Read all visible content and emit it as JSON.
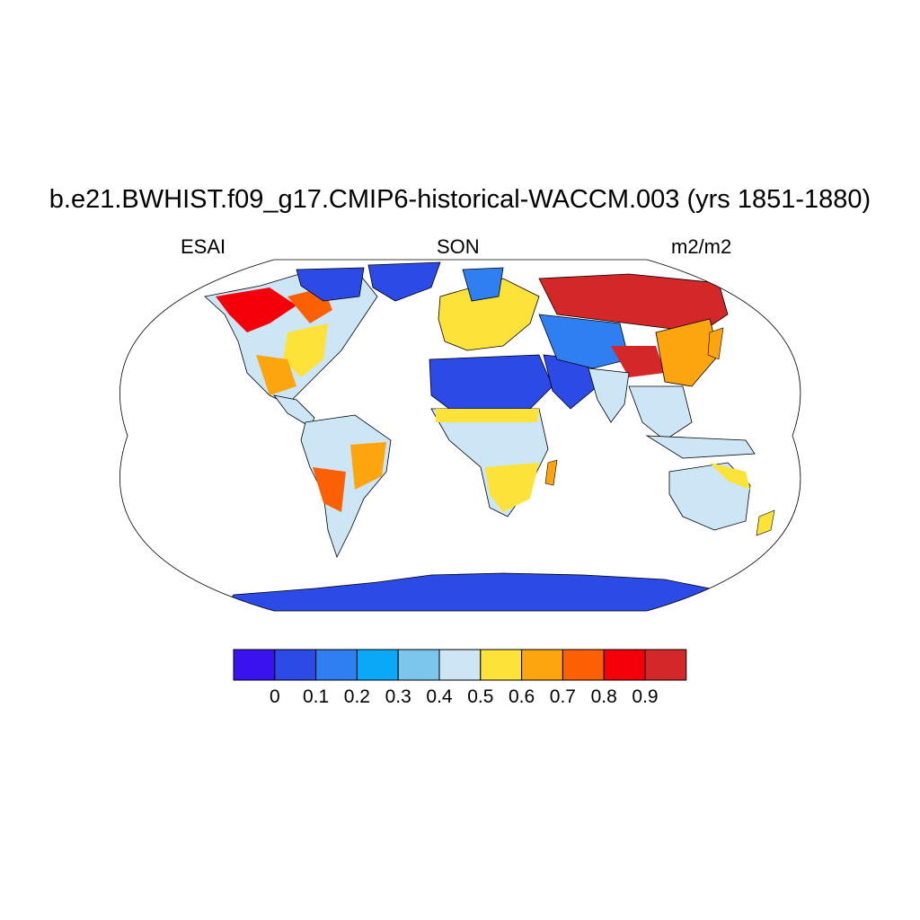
{
  "title": "b.e21.BWHIST.f09_g17.CMIP6-historical-WACCM.003 (yrs 1851-1880)",
  "subtitle_left": "ESAI",
  "subtitle_center": "SON",
  "subtitle_right": "m2/m2",
  "colorbar": {
    "colors": [
      "#3a12f0",
      "#2c4ae6",
      "#2f7ef2",
      "#0aa8f7",
      "#7cc6ec",
      "#cce6f6",
      "#fde23a",
      "#fca50f",
      "#fb6004",
      "#f4000b",
      "#d4272a"
    ],
    "labels": [
      "0",
      "0.1",
      "0.2",
      "0.3",
      "0.4",
      "0.5",
      "0.6",
      "0.7",
      "0.8",
      "0.9"
    ]
  },
  "map_colors": {
    "ocean": "#ffffff",
    "land_base": "#cce6f6",
    "coast": "#000000"
  }
}
